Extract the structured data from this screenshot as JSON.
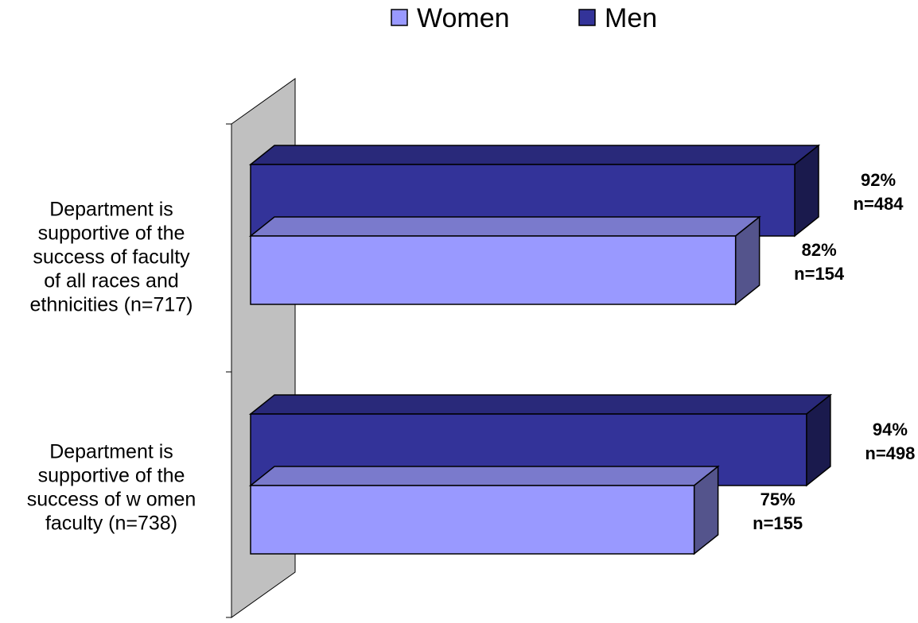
{
  "chart_data": {
    "type": "bar",
    "orientation": "horizontal",
    "style": "3d",
    "categories": [
      "Department is supportive of the success of faculty of all races and ethnicities (n=717)",
      "Department is supportive of the success of women faculty (n=738)"
    ],
    "category_lines": [
      [
        "Department is",
        "supportive of the",
        "success of faculty",
        "of all races and",
        "ethnicities (n=717)"
      ],
      [
        "Department is",
        "supportive of the",
        "success of w omen",
        "faculty (n=738)"
      ]
    ],
    "series": [
      {
        "name": "Women",
        "color": "#9999ff",
        "values": [
          82,
          75
        ],
        "labels": [
          [
            "82%",
            "n=154"
          ],
          [
            "75%",
            "n=155"
          ]
        ]
      },
      {
        "name": "Men",
        "color": "#333399",
        "values": [
          92,
          94
        ],
        "labels": [
          [
            "92%",
            "n=484"
          ],
          [
            "94%",
            "n=498"
          ]
        ]
      }
    ],
    "xlim": [
      0,
      100
    ],
    "legend": {
      "position": "top",
      "items": [
        "Women",
        "Men"
      ]
    },
    "grid": false,
    "title": "",
    "xlabel": "",
    "ylabel": ""
  }
}
